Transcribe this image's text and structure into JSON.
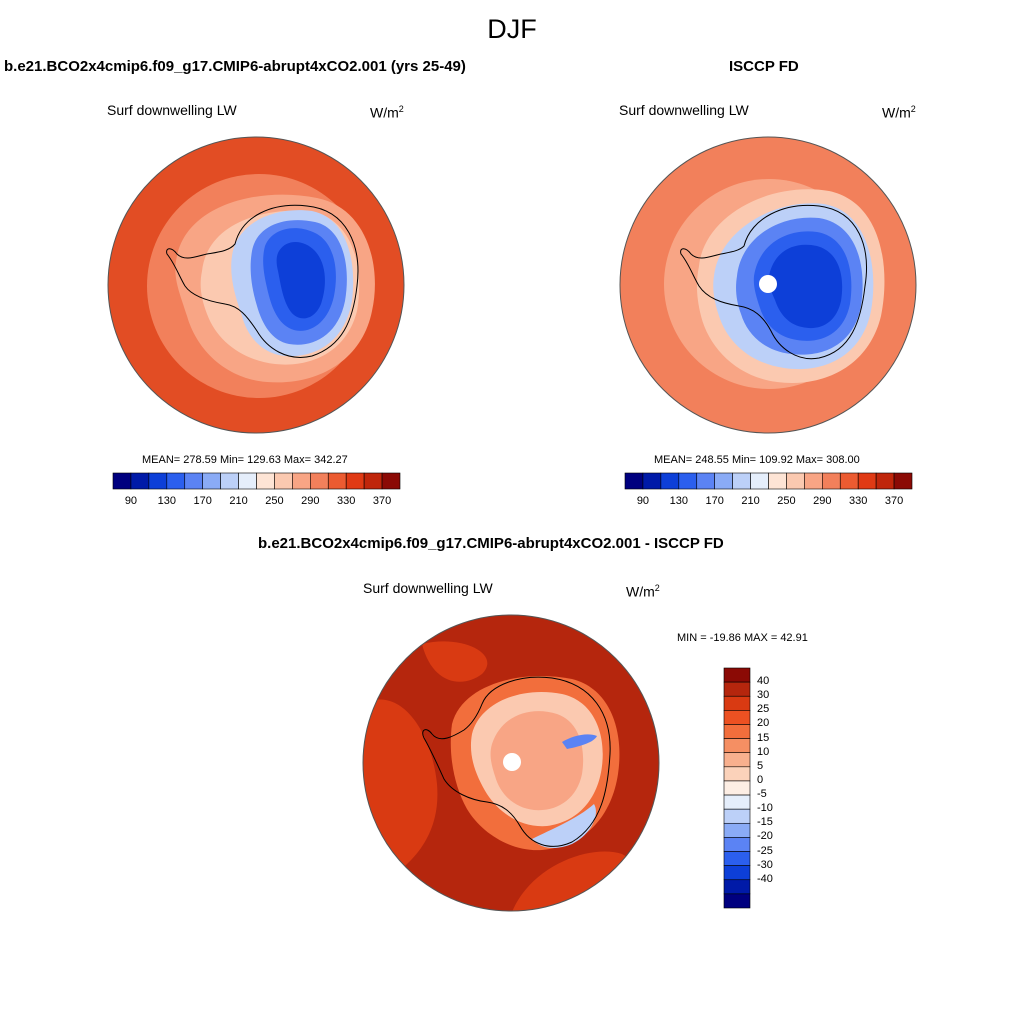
{
  "figure": {
    "title": "DJF"
  },
  "panels": [
    {
      "id": "model",
      "title": "b.e21.BCO2x4cmip6.f09_g17.CMIP6-abrupt4xCO2.001 (yrs 25-49)",
      "variable": "Surf downwelling LW",
      "units_base": "W/m",
      "units_exp": "2",
      "stats": "MEAN= 278.59  Min= 129.63  Max= 342.27",
      "polar_hole": false
    },
    {
      "id": "obs",
      "title": "ISCCP FD",
      "variable": "Surf downwelling LW",
      "units_base": "W/m",
      "units_exp": "2",
      "stats": "MEAN= 248.55  Min= 109.92  Max= 308.00",
      "polar_hole": true
    },
    {
      "id": "diff",
      "title": "b.e21.BCO2x4cmip6.f09_g17.CMIP6-abrupt4xCO2.001 - ISCCP FD",
      "variable": "Surf downwelling LW",
      "units_base": "W/m",
      "units_exp": "2",
      "stats": "MIN = -19.86 MAX =  42.91",
      "polar_hole": true
    }
  ],
  "colorbar_abs": {
    "colors": [
      "#00007f",
      "#001aa8",
      "#0d3fd8",
      "#2b5fee",
      "#5b83f4",
      "#8aabf6",
      "#bcd0f8",
      "#e5eefb",
      "#fde4d5",
      "#fbc9b0",
      "#f8a585",
      "#f2805b",
      "#ec5b31",
      "#e03a14",
      "#c0260b",
      "#8b0a05"
    ],
    "ticks": [
      "90",
      "130",
      "170",
      "210",
      "250",
      "290",
      "330",
      "370"
    ]
  },
  "colorbar_diff": {
    "colors": [
      "#8b0a05",
      "#b5260d",
      "#d93a12",
      "#ec5122",
      "#f26e3c",
      "#f58f63",
      "#f8b08e",
      "#fbd2ba",
      "#fdeee4",
      "#e5eefb",
      "#bcd0f8",
      "#8aabf6",
      "#5b83f4",
      "#2b5fee",
      "#0d3fd8",
      "#001aa8",
      "#00007f"
    ],
    "ticks": [
      "40",
      "30",
      "25",
      "20",
      "15",
      "10",
      "5",
      "0",
      "-5",
      "-10",
      "-15",
      "-20",
      "-25",
      "-30",
      "-40"
    ]
  },
  "map_colors": {
    "outer_warm": "#e24d24",
    "ocean_mid": "#f2805b",
    "ocean_light": "#f8a585",
    "coast_pale": "#fbc9b0",
    "ice_light": "#bcd0f8",
    "ice_mid": "#5b83f4",
    "ice_deep": "#2b5fee",
    "ice_core": "#0d3fd8",
    "diff_dark": "#b5260d",
    "diff_mid": "#d93a12",
    "diff_light": "#f26e3c",
    "coastline": "#000000",
    "rim": "#555555"
  }
}
